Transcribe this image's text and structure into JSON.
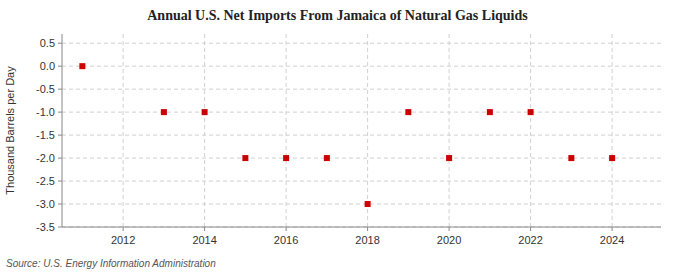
{
  "chart_data": {
    "type": "scatter",
    "title": "Annual U.S. Net Imports From Jamaica of Natural Gas Liquids",
    "y_label": "Thousand Barrels per Day",
    "source": "Source: U.S. Energy Information Administration",
    "x": [
      2011,
      2013,
      2014,
      2015,
      2016,
      2017,
      2018,
      2019,
      2020,
      2021,
      2022,
      2023,
      2024
    ],
    "values": [
      0,
      -1,
      -1,
      -2,
      -2,
      -2,
      -3,
      -1,
      -2,
      -1,
      -1,
      -2,
      -2
    ],
    "color": "#cc0000",
    "marker": "square",
    "xlim": [
      2010.5,
      2025.2
    ],
    "ylim": [
      -3.5,
      0.7
    ],
    "xticks": [
      2012,
      2014,
      2016,
      2018,
      2020,
      2022,
      2024
    ],
    "yticks": [
      0.5,
      {
        "value": 0.0,
        "label": "0.0"
      },
      -0.5,
      {
        "value": -1.0,
        "label": "-1.0"
      },
      -1.5,
      {
        "value": -2.0,
        "label": "-2.0"
      },
      -2.5,
      {
        "value": -3.0,
        "label": "-3.0"
      },
      -3.5
    ],
    "grid": true
  }
}
